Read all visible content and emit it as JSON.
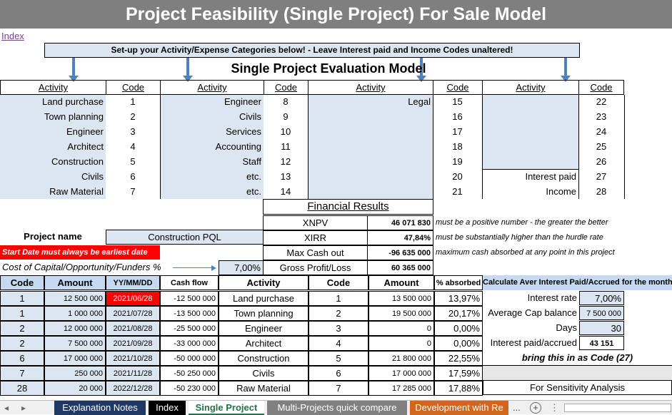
{
  "title": "Project Feasibility (Single Project) For Sale Model",
  "index_link": "Index",
  "banner": "Set-up your Activity/Expense Categories below! - Leave Interest paid and Income Codes unaltered!",
  "model_title": "Single Project Evaluation Model",
  "headers": {
    "activity": "Activity",
    "code": "Code"
  },
  "col1": [
    {
      "activity": "Land purchase",
      "code": "1"
    },
    {
      "activity": "Town planning",
      "code": "2"
    },
    {
      "activity": "Engineer",
      "code": "3"
    },
    {
      "activity": "Architect",
      "code": "4"
    },
    {
      "activity": "Construction",
      "code": "5"
    },
    {
      "activity": "Civils",
      "code": "6"
    },
    {
      "activity": "Raw Material",
      "code": "7"
    }
  ],
  "col2": [
    {
      "activity": "Engineer",
      "code": "8"
    },
    {
      "activity": "Civils",
      "code": "9"
    },
    {
      "activity": "Services",
      "code": "10"
    },
    {
      "activity": "Accounting",
      "code": "11"
    },
    {
      "activity": "Staff",
      "code": "12"
    },
    {
      "activity": "etc.",
      "code": "13"
    },
    {
      "activity": "etc.",
      "code": "14"
    }
  ],
  "col3": [
    {
      "activity": "Legal",
      "code": "15"
    },
    {
      "activity": "",
      "code": "16"
    },
    {
      "activity": "",
      "code": "17"
    },
    {
      "activity": "",
      "code": "18"
    },
    {
      "activity": "",
      "code": "19"
    },
    {
      "activity": "",
      "code": "20"
    },
    {
      "activity": "",
      "code": "21"
    }
  ],
  "col4": [
    {
      "activity": "",
      "code": "22"
    },
    {
      "activity": "",
      "code": "23"
    },
    {
      "activity": "",
      "code": "24"
    },
    {
      "activity": "",
      "code": "25"
    },
    {
      "activity": "",
      "code": "26"
    },
    {
      "activity": "Interest paid",
      "code": "27"
    },
    {
      "activity": "Income",
      "code": "28"
    }
  ],
  "financial": {
    "title": "Financial Results",
    "rows": [
      {
        "label": "XNPV",
        "value": "46 071 830",
        "note": "must be a positive number - the greater the better"
      },
      {
        "label": "XIRR",
        "value": "47,84%",
        "note": "must be substantially higher than the hurdle rate"
      },
      {
        "label": "Max Cash out",
        "value": "-96 635 000",
        "note": "maximum cash absorbed at any point in this project"
      },
      {
        "label": "Gross Profit/Loss",
        "value": "60 365 000",
        "note": ""
      }
    ]
  },
  "project": {
    "name_label": "Project name",
    "name_value": "Construction PQL",
    "start_warning": "Start Date must always be earliest date",
    "coc_label": "Cost of Capital/Opportunity/Funders %",
    "coc_value": "7,00%"
  },
  "cashflow": {
    "headers": [
      "Code",
      "Amount",
      "YY/MM/DD",
      "Cash flow",
      "Activity",
      "Code",
      "Amount",
      "% absorbed"
    ],
    "rows": [
      {
        "code": "1",
        "amount": "12 500 000",
        "date": "2021/06/28",
        "cf": "-12 500 000",
        "activity": "Land purchase",
        "code2": "1",
        "amount2": "13 500 000",
        "pct": "13,97%"
      },
      {
        "code": "1",
        "amount": "1 000 000",
        "date": "2021/07/28",
        "cf": "-13 500 000",
        "activity": "Town planning",
        "code2": "2",
        "amount2": "19 500 000",
        "pct": "20,17%"
      },
      {
        "code": "2",
        "amount": "12 000 000",
        "date": "2021/08/28",
        "cf": "-25 500 000",
        "activity": "Engineer",
        "code2": "3",
        "amount2": "0",
        "pct": "0,00%"
      },
      {
        "code": "2",
        "amount": "7 500 000",
        "date": "2021/09/28",
        "cf": "-33 000 000",
        "activity": "Architect",
        "code2": "4",
        "amount2": "0",
        "pct": "0,00%"
      },
      {
        "code": "6",
        "amount": "17 000 000",
        "date": "2021/10/28",
        "cf": "-50 000 000",
        "activity": "Construction",
        "code2": "5",
        "amount2": "21 800 000",
        "pct": "22,55%"
      },
      {
        "code": "7",
        "amount": "250 000",
        "date": "2021/11/28",
        "cf": "-50 250 000",
        "activity": "Civils",
        "code2": "6",
        "amount2": "17 000 000",
        "pct": "17,59%"
      },
      {
        "code": "28",
        "amount": "20 000",
        "date": "2022/12/28",
        "cf": "-50 230 000",
        "activity": "Raw Material",
        "code2": "7",
        "amount2": "17 285 000",
        "pct": "17,88%"
      }
    ]
  },
  "interest": {
    "title": "Calculate Aver Interest Paid/Accrued for the month",
    "rate_label": "Interest rate",
    "rate_value": "7,00%",
    "cap_label": "Average Cap balance",
    "cap_value": "7 500 000",
    "days_label": "Days",
    "days_value": "30",
    "paid_label": "Interest paid/accrued",
    "paid_value": "43 151",
    "bring_in": "bring this in as Code (27)",
    "sensitivity": "For Sensitivity Analysis"
  },
  "tabs": [
    "Explanation Notes",
    "Index",
    "Single Project",
    "Multi-Projects quick compare",
    "Development with Re"
  ],
  "tab_overflow": "...",
  "colors": {
    "title_bg": "#7f7f7f",
    "light_blue": "#dce6f1",
    "mid_blue": "#c5d9f1",
    "red": "#ff0000",
    "tab_dark": "#1f3864",
    "tab_black": "#000000",
    "tab_gray": "#808080",
    "tab_orange": "#d0651c"
  }
}
